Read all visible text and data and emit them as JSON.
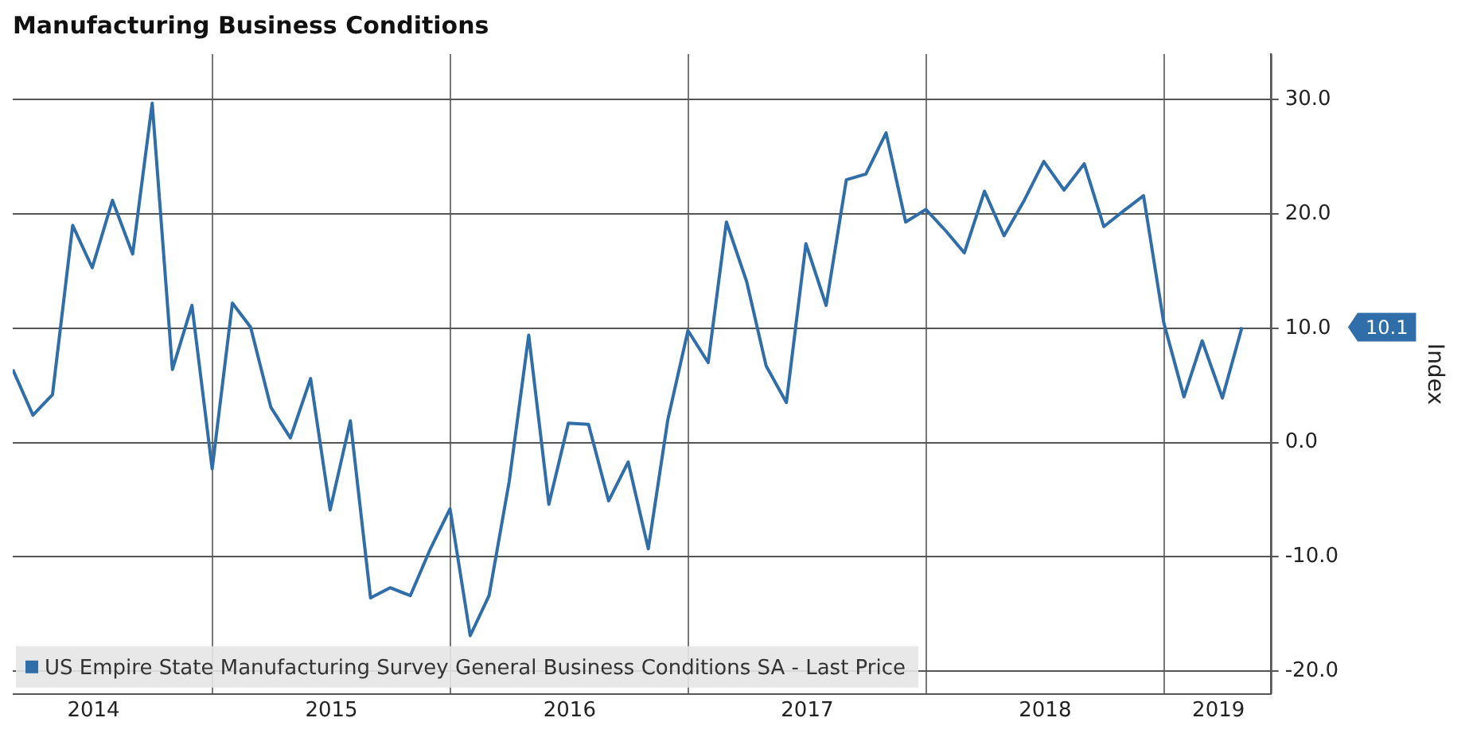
{
  "chart_data": {
    "type": "line",
    "title": "Manufacturing Business Conditions",
    "ylabel": "Index",
    "x": [
      "2014-02-28",
      "2014-03-31",
      "2014-04-30",
      "2014-05-31",
      "2014-06-30",
      "2014-07-31",
      "2014-08-31",
      "2014-09-30",
      "2014-10-31",
      "2014-11-30",
      "2014-12-31",
      "2015-01-31",
      "2015-02-28",
      "2015-03-31",
      "2015-04-30",
      "2015-05-31",
      "2015-06-30",
      "2015-07-31",
      "2015-08-31",
      "2015-09-30",
      "2015-10-31",
      "2015-11-30",
      "2015-12-31",
      "2016-01-31",
      "2016-02-29",
      "2016-03-31",
      "2016-04-30",
      "2016-05-31",
      "2016-06-30",
      "2016-07-31",
      "2016-08-31",
      "2016-09-30",
      "2016-10-31",
      "2016-11-30",
      "2016-12-31",
      "2017-01-31",
      "2017-02-28",
      "2017-03-31",
      "2017-04-30",
      "2017-05-31",
      "2017-06-30",
      "2017-07-31",
      "2017-08-31",
      "2017-09-30",
      "2017-10-31",
      "2017-11-30",
      "2017-12-31",
      "2018-01-31",
      "2018-02-28",
      "2018-03-31",
      "2018-04-30",
      "2018-05-31",
      "2018-06-30",
      "2018-07-31",
      "2018-08-31",
      "2018-09-30",
      "2018-10-31",
      "2018-11-30",
      "2018-12-31",
      "2019-01-31",
      "2019-02-28",
      "2019-03-31",
      "2019-04-30"
    ],
    "series": [
      {
        "name": "US Empire State Manufacturing Survey General Business Conditions SA - Last Price",
        "color": "#2f6ea8",
        "values": [
          6.4,
          2.4,
          4.2,
          19.0,
          15.3,
          21.2,
          16.5,
          29.7,
          6.4,
          12.0,
          -2.3,
          12.2,
          10.1,
          3.1,
          0.4,
          5.6,
          -5.9,
          1.9,
          -13.6,
          -12.7,
          -13.4,
          -9.4,
          -5.8,
          -16.9,
          -13.4,
          -3.4,
          9.4,
          -5.4,
          1.7,
          1.6,
          -5.1,
          -1.7,
          -9.3,
          2.0,
          9.8,
          7.0,
          19.3,
          14.1,
          6.7,
          3.5,
          17.4,
          12.0,
          23.0,
          23.5,
          27.1,
          19.3,
          20.4,
          18.5,
          16.6,
          22.0,
          18.1,
          21.2,
          24.6,
          22.1,
          24.4,
          18.9,
          20.3,
          21.6,
          10.5,
          4.0,
          8.9,
          3.9,
          10.1
        ]
      }
    ],
    "xlim": [
      "2014-02-28",
      "2019-06-13"
    ],
    "xticks": [
      {
        "value": "2014-07-02",
        "label": "2014"
      },
      {
        "value": "2015-01-01",
        "label": null
      },
      {
        "value": "2015-07-02",
        "label": "2015"
      },
      {
        "value": "2016-01-01",
        "label": null
      },
      {
        "value": "2016-07-02",
        "label": "2016"
      },
      {
        "value": "2017-01-01",
        "label": null
      },
      {
        "value": "2017-07-02",
        "label": "2017"
      },
      {
        "value": "2018-01-01",
        "label": null
      },
      {
        "value": "2018-07-02",
        "label": "2018"
      },
      {
        "value": "2019-01-01",
        "label": null
      },
      {
        "value": "2019-03-25",
        "label": "2019"
      }
    ],
    "ylim": [
      -22,
      34
    ],
    "yticks": [
      {
        "value": -20,
        "label": "-20.0"
      },
      {
        "value": -10,
        "label": "-10.0"
      },
      {
        "value": 0,
        "label": "0.0"
      },
      {
        "value": 10,
        "label": "10.0"
      },
      {
        "value": 20,
        "label": "20.0"
      },
      {
        "value": 30,
        "label": "30.0"
      }
    ],
    "annotations": [
      "10.1"
    ],
    "grid": true,
    "legend": "bottom left",
    "marker": "none",
    "line_style": "solid"
  }
}
